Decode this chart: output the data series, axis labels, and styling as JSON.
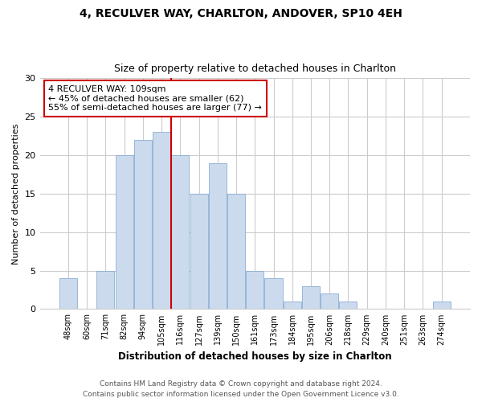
{
  "title1": "4, RECULVER WAY, CHARLTON, ANDOVER, SP10 4EH",
  "title2": "Size of property relative to detached houses in Charlton",
  "xlabel": "Distribution of detached houses by size in Charlton",
  "ylabel": "Number of detached properties",
  "categories": [
    "48sqm",
    "60sqm",
    "71sqm",
    "82sqm",
    "94sqm",
    "105sqm",
    "116sqm",
    "127sqm",
    "139sqm",
    "150sqm",
    "161sqm",
    "173sqm",
    "184sqm",
    "195sqm",
    "206sqm",
    "218sqm",
    "229sqm",
    "240sqm",
    "251sqm",
    "263sqm",
    "274sqm"
  ],
  "values": [
    4,
    0,
    5,
    20,
    22,
    23,
    20,
    15,
    19,
    15,
    5,
    4,
    1,
    3,
    2,
    1,
    0,
    0,
    0,
    0,
    1
  ],
  "bar_color": "#ccdaed",
  "bar_edge_color": "#8aafd4",
  "vline_x": 5.5,
  "vline_color": "#cc0000",
  "annotation_text": "4 RECULVER WAY: 109sqm\n← 45% of detached houses are smaller (62)\n55% of semi-detached houses are larger (77) →",
  "annotation_box_color": "#ffffff",
  "annotation_box_edge": "#cc0000",
  "ylim": [
    0,
    30
  ],
  "yticks": [
    0,
    5,
    10,
    15,
    20,
    25,
    30
  ],
  "footnote1": "Contains HM Land Registry data © Crown copyright and database right 2024.",
  "footnote2": "Contains public sector information licensed under the Open Government Licence v3.0.",
  "background_color": "#ffffff",
  "grid_color": "#cccccc"
}
